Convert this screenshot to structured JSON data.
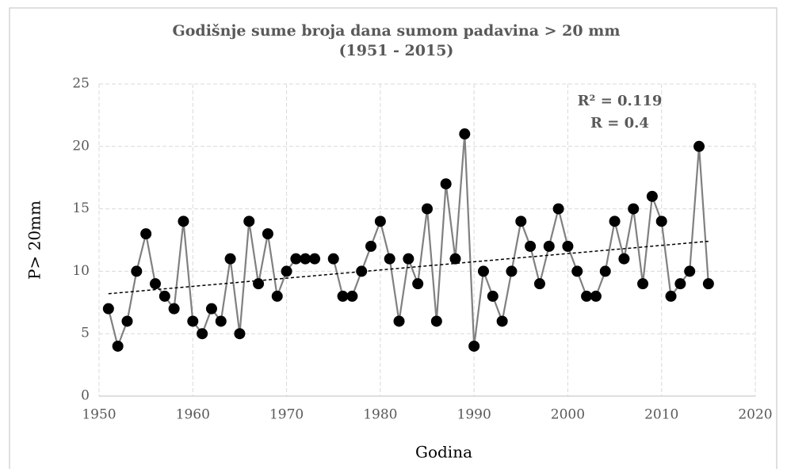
{
  "chart_data": {
    "type": "line",
    "title": "Godišnje sume broja dana sumom padavina  > 20 mm",
    "subtitle": "(1951 - 2015)",
    "x_label": "Godina",
    "y_label": "P> 20mm",
    "annotations": [
      "R² = 0.119",
      "R = 0.4"
    ],
    "x": [
      1951,
      1952,
      1953,
      1954,
      1955,
      1956,
      1957,
      1958,
      1959,
      1960,
      1961,
      1962,
      1963,
      1964,
      1965,
      1966,
      1967,
      1968,
      1969,
      1970,
      1971,
      1972,
      1973,
      1974,
      1975,
      1976,
      1977,
      1978,
      1979,
      1980,
      1981,
      1982,
      1983,
      1984,
      1985,
      1986,
      1987,
      1988,
      1989,
      1990,
      1991,
      1992,
      1993,
      1994,
      1995,
      1996,
      1997,
      1998,
      1999,
      2000,
      2001,
      2002,
      2003,
      2004,
      2005,
      2006,
      2007,
      2008,
      2009,
      2010,
      2011,
      2012,
      2013,
      2014,
      2015
    ],
    "series": [
      {
        "name": "P> 20mm",
        "color": "#808080",
        "marker_color": "#000000",
        "values": [
          7,
          4,
          6,
          10,
          13,
          9,
          8,
          7,
          14,
          6,
          5,
          7,
          6,
          11,
          5,
          14,
          9,
          13,
          8,
          10,
          11,
          11,
          11,
          null,
          11,
          8,
          8,
          10,
          12,
          14,
          11,
          6,
          11,
          9,
          15,
          6,
          17,
          11,
          21,
          4,
          10,
          8,
          6,
          10,
          14,
          12,
          9,
          12,
          15,
          12,
          10,
          8,
          8,
          10,
          14,
          11,
          15,
          9,
          16,
          14,
          8,
          9,
          10,
          20,
          9
        ]
      }
    ],
    "trendline": {
      "x": [
        1951,
        2015
      ],
      "values": [
        8.2,
        12.4
      ],
      "color": "#000000"
    },
    "xlim": [
      1950,
      2020
    ],
    "xticks": [
      1950,
      1960,
      1970,
      1980,
      1990,
      2000,
      2010,
      2020
    ],
    "ylim": [
      0,
      25
    ],
    "yticks": [
      0,
      5,
      10,
      15,
      20,
      25
    ],
    "grid": true
  }
}
